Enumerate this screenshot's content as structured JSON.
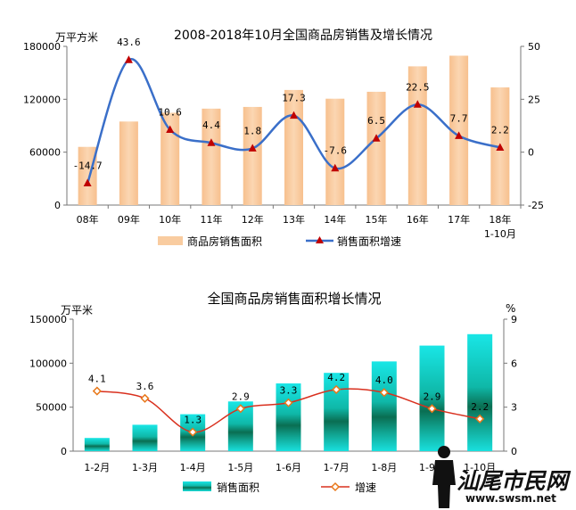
{
  "chart_data": [
    {
      "type": "bar+line",
      "title": "2008-2018年10月全国商品房销售及增长情况",
      "ylabel_left": "万平方米",
      "categories": [
        "08年",
        "09年",
        "10年",
        "11年",
        "12年",
        "13年",
        "14年",
        "15年",
        "16年",
        "17年",
        "18年"
      ],
      "category_sub": {
        "10": "1-10月"
      },
      "series": [
        {
          "name": "商品房销售面积",
          "axis": "left",
          "type": "bar",
          "values": [
            66000,
            94755,
            104765,
            109366,
            111304,
            130551,
            120649,
            128495,
            157349,
            169408,
            133442
          ]
        },
        {
          "name": "销售面积增速",
          "axis": "right",
          "type": "line",
          "values": [
            -14.7,
            43.6,
            10.6,
            4.4,
            1.8,
            17.3,
            -7.6,
            6.5,
            22.5,
            7.7,
            2.2
          ],
          "labels": [
            "-14.7",
            "43.6",
            "10.6",
            "4.4",
            "1.8",
            "17.3",
            "-7.6",
            "6.5",
            "22.5",
            "7.7",
            "2.2"
          ]
        }
      ],
      "ylim_left": [
        0,
        180000
      ],
      "yticks_left": [
        "0",
        "60000",
        "120000",
        "180000"
      ],
      "ylim_right": [
        -25,
        50
      ],
      "yticks_right": [
        "-25",
        "0",
        "25",
        "50"
      ],
      "colors": {
        "bar": "#f9cca0",
        "line": "#3a6fc9",
        "marker": "#c00000"
      },
      "legend": "bottom"
    },
    {
      "type": "bar+line",
      "title": "全国商品房销售面积增长情况",
      "ylabel_left": "万平米",
      "ylabel_right": "%",
      "categories": [
        "1-2月",
        "1-3月",
        "1-4月",
        "1-5月",
        "1-6月",
        "1-7月",
        "1-8月",
        "1-9月",
        "1-10月"
      ],
      "series": [
        {
          "name": "销售面积",
          "axis": "left",
          "type": "bar",
          "values": [
            15000,
            30000,
            42000,
            56500,
            77000,
            89000,
            102000,
            120000,
            133000
          ]
        },
        {
          "name": "增速",
          "axis": "right",
          "type": "line",
          "values": [
            4.1,
            3.6,
            1.3,
            2.9,
            3.3,
            4.2,
            4.0,
            2.9,
            2.2
          ],
          "labels": [
            "4.1",
            "3.6",
            "1.3",
            "2.9",
            "3.3",
            "4.2",
            "4.0",
            "2.9",
            "2.2"
          ]
        }
      ],
      "ylim_left": [
        0,
        150000
      ],
      "yticks_left": [
        "0",
        "50000",
        "100000",
        "150000"
      ],
      "ylim_right": [
        0,
        9
      ],
      "yticks_right": [
        "0",
        "3",
        "6",
        "9"
      ],
      "colors": {
        "bar": "#19c9c9",
        "bar_dark": "#0a6e52",
        "line": "#d9301e",
        "marker": "#e8781a"
      },
      "legend": "bottom"
    }
  ],
  "watermark": {
    "title": "汕尾市民网",
    "url": "www.swsm.net"
  }
}
